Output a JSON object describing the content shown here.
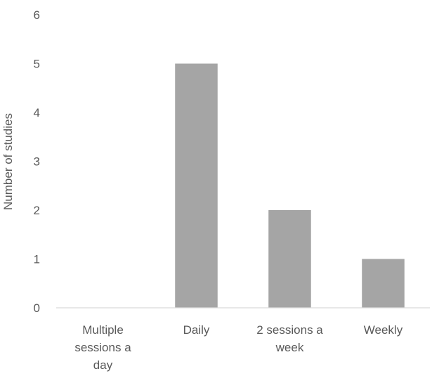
{
  "chart_data": {
    "type": "bar",
    "title": "",
    "xlabel": "",
    "ylabel": "Number of studies",
    "categories": [
      "Multiple sessions a day",
      "Daily",
      "2 sessions a week",
      "Weekly"
    ],
    "category_label_lines": [
      [
        "Multiple",
        "sessions a",
        "day"
      ],
      [
        "Daily"
      ],
      [
        "2 sessions a",
        "week"
      ],
      [
        "Weekly"
      ]
    ],
    "values": [
      0,
      5,
      2,
      1
    ],
    "ylim": [
      0,
      6
    ],
    "yticks": [
      "0",
      "1",
      "2",
      "3",
      "4",
      "5",
      "6"
    ],
    "grid": false,
    "legend": "none",
    "colors": {
      "bar": "#a5a5a5",
      "axis_line": "#d9d9d9",
      "text": "#595959"
    }
  }
}
